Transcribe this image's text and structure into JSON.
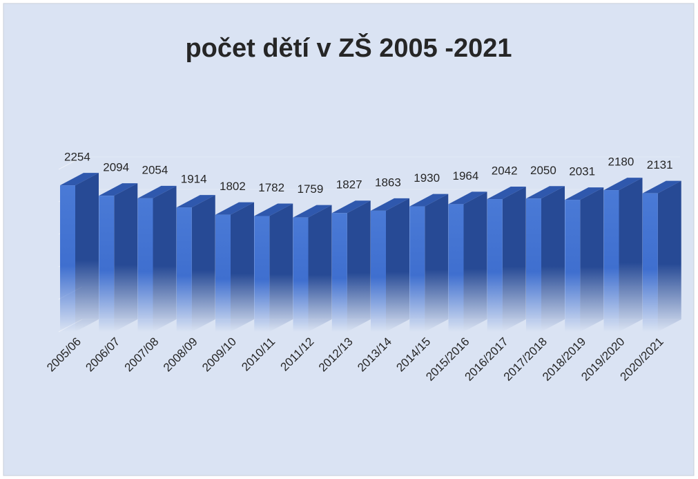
{
  "chart_data": {
    "type": "bar3d",
    "title": "počet dětí v ZŠ 2005 -2021",
    "categories": [
      "2005/06",
      "2006/07",
      "2007/08",
      "2008/09",
      "2009/10",
      "2010/11",
      "2011/12",
      "2012/13",
      "2013/14",
      "2014/15",
      "2015/2016",
      "2016/2017",
      "2017/2018",
      "2018/2019",
      "2019/2020",
      "2020/2021"
    ],
    "values": [
      2254,
      2094,
      2054,
      1914,
      1802,
      1782,
      1759,
      1827,
      1863,
      1930,
      1964,
      2042,
      2050,
      2031,
      2180,
      2131
    ],
    "color": "#3f6fcf",
    "ylim": [
      0,
      2500
    ],
    "yticks": [
      0,
      500,
      1000,
      1500,
      2000,
      2500
    ],
    "grid": true
  }
}
